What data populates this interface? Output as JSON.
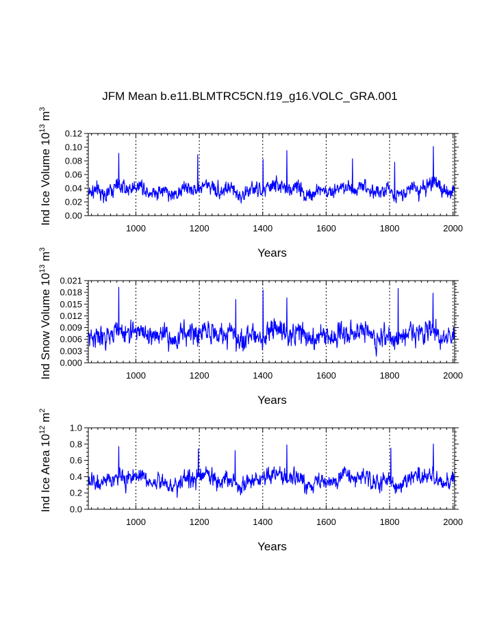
{
  "figure": {
    "title": "JFM Mean b.e11.BLMTRC5CN.f19_g16.VOLC_GRA.001"
  },
  "chart_data": [
    {
      "type": "line",
      "title": "JFM Mean b.e11.BLMTRC5CN.f19_g16.VOLC_GRA.001",
      "xlabel": "Years",
      "ylabel_main": "Ind Ice Volume 10",
      "ylabel_exp": "13",
      "ylabel_unit": " m",
      "ylabel_unit_exp": "3",
      "xlim": [
        850,
        2005
      ],
      "ylim": [
        0.0,
        0.12
      ],
      "x_ticks": [
        1000,
        1200,
        1400,
        1600,
        1800,
        2000
      ],
      "x_tick_labels": [
        "1000",
        "1200",
        "1400",
        "1600",
        "1800",
        "2000"
      ],
      "y_ticks": [
        0.0,
        0.02,
        0.04,
        0.06,
        0.08,
        0.1,
        0.12
      ],
      "y_tick_labels": [
        "0.00",
        "0.02",
        "0.04",
        "0.06",
        "0.08",
        "0.10",
        "0.12"
      ],
      "gridlines_x": [
        1000,
        1200,
        1400,
        1600,
        1800,
        2000
      ],
      "series": [
        {
          "name": "Ind Ice Volume",
          "color": "#0000ff",
          "x_start": 850,
          "x_step": 1,
          "mean": 0.038,
          "spread": 0.007,
          "peaks": [
            {
              "x": 946,
              "y": 0.091
            },
            {
              "x": 1195,
              "y": 0.089
            },
            {
              "x": 1401,
              "y": 0.082
            },
            {
              "x": 1476,
              "y": 0.095
            },
            {
              "x": 1683,
              "y": 0.083
            },
            {
              "x": 1816,
              "y": 0.078
            },
            {
              "x": 1938,
              "y": 0.101
            }
          ]
        }
      ]
    },
    {
      "type": "line",
      "title": "",
      "xlabel": "Years",
      "ylabel_main": "Ind Snow Volume 10",
      "ylabel_exp": "13",
      "ylabel_unit": " m",
      "ylabel_unit_exp": "3",
      "xlim": [
        850,
        2005
      ],
      "ylim": [
        0.0,
        0.021
      ],
      "x_ticks": [
        1000,
        1200,
        1400,
        1600,
        1800,
        2000
      ],
      "x_tick_labels": [
        "1000",
        "1200",
        "1400",
        "1600",
        "1800",
        "2000"
      ],
      "y_ticks": [
        0.0,
        0.003,
        0.006,
        0.009,
        0.012,
        0.015,
        0.018,
        0.021
      ],
      "y_tick_labels": [
        "0.000",
        "0.003",
        "0.006",
        "0.009",
        "0.012",
        "0.015",
        "0.018",
        "0.021"
      ],
      "gridlines_x": [
        1000,
        1200,
        1400,
        1600,
        1800,
        2000
      ],
      "series": [
        {
          "name": "Ind Snow Volume",
          "color": "#0000ff",
          "x_start": 850,
          "x_step": 1,
          "mean": 0.0072,
          "spread": 0.0017,
          "peaks": [
            {
              "x": 946,
              "y": 0.0193
            },
            {
              "x": 1315,
              "y": 0.0162
            },
            {
              "x": 1401,
              "y": 0.0186
            },
            {
              "x": 1476,
              "y": 0.0166
            },
            {
              "x": 1827,
              "y": 0.019
            },
            {
              "x": 1937,
              "y": 0.0178
            }
          ]
        }
      ]
    },
    {
      "type": "line",
      "title": "",
      "xlabel": "Years",
      "ylabel_main": "Ind Ice Area 10",
      "ylabel_exp": "12",
      "ylabel_unit": " m",
      "ylabel_unit_exp": "2",
      "xlim": [
        850,
        2005
      ],
      "ylim": [
        0.0,
        1.0
      ],
      "x_ticks": [
        1000,
        1200,
        1400,
        1600,
        1800,
        2000
      ],
      "x_tick_labels": [
        "1000",
        "1200",
        "1400",
        "1600",
        "1800",
        "2000"
      ],
      "y_ticks": [
        0.0,
        0.2,
        0.4,
        0.6,
        0.8,
        1.0
      ],
      "y_tick_labels": [
        "0.0",
        "0.2",
        "0.4",
        "0.6",
        "0.8",
        "1.0"
      ],
      "gridlines_x": [
        1000,
        1200,
        1400,
        1600,
        1800,
        2000
      ],
      "series": [
        {
          "name": "Ind Ice Area",
          "color": "#0000ff",
          "x_start": 850,
          "x_step": 1,
          "mean": 0.36,
          "spread": 0.065,
          "peaks": [
            {
              "x": 946,
              "y": 0.77
            },
            {
              "x": 1197,
              "y": 0.74
            },
            {
              "x": 1313,
              "y": 0.72
            },
            {
              "x": 1476,
              "y": 0.79
            },
            {
              "x": 1804,
              "y": 0.75
            },
            {
              "x": 1938,
              "y": 0.8
            }
          ]
        }
      ]
    }
  ]
}
